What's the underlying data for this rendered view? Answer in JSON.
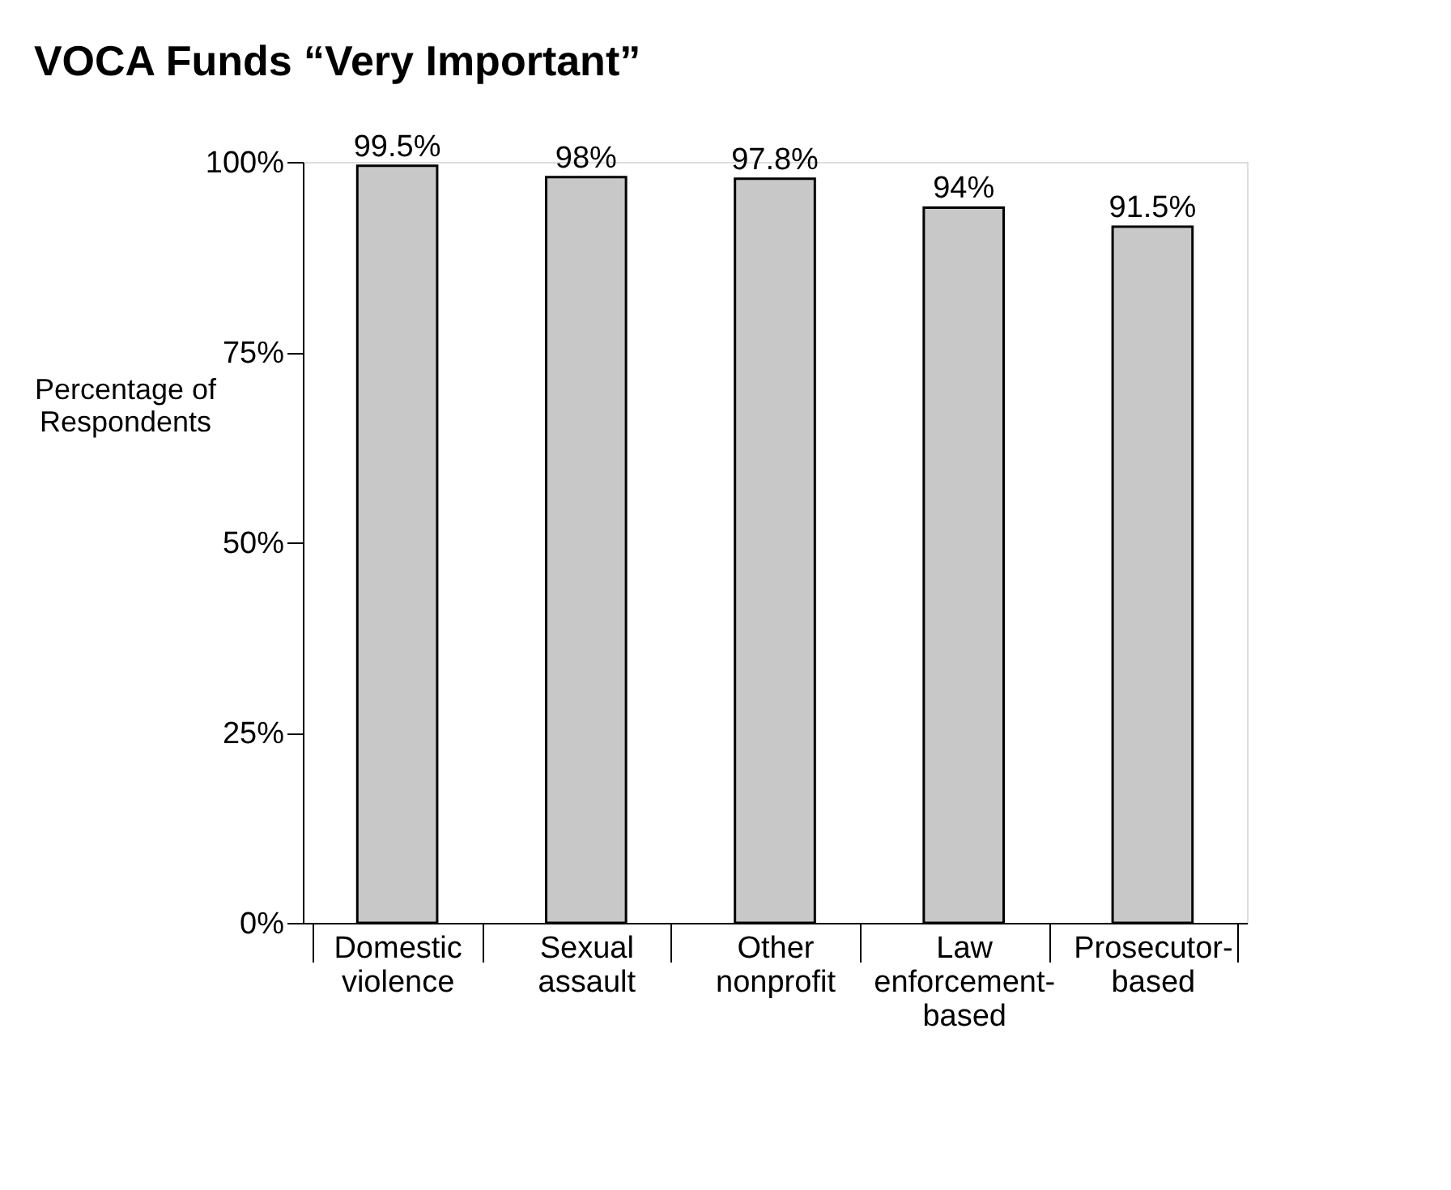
{
  "chart_data": {
    "type": "bar",
    "title": "VOCA Funds “Very Important”",
    "ylabel": "Percentage of\nRespondents",
    "categories": [
      "Domestic\nviolence",
      "Sexual\nassault",
      "Other\nnonprofit",
      "Law\nenforcement-\nbased",
      "Prosecutor-\nbased"
    ],
    "values": [
      99.5,
      98,
      97.8,
      94,
      91.5
    ],
    "value_labels": [
      "99.5%",
      "98%",
      "97.8%",
      "94%",
      "91.5%"
    ],
    "color": "#c8c8c8",
    "ylim": [
      0,
      100
    ],
    "yticks": [
      {
        "value": 0,
        "label": "0%"
      },
      {
        "value": 25,
        "label": "25%"
      },
      {
        "value": 50,
        "label": "50%"
      },
      {
        "value": 75,
        "label": "75%"
      },
      {
        "value": 100,
        "label": "100%"
      }
    ],
    "grid": false
  }
}
